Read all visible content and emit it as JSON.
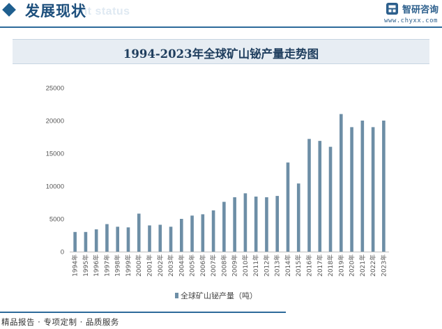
{
  "header": {
    "title": "发展现状",
    "subtitle": "ent status",
    "brand_name": "智研咨询",
    "brand_url": "www.chyxx.com",
    "accent_color": "#1f5f8f"
  },
  "chart_data": {
    "type": "bar",
    "title": "1994-2023年全球矿山铋产量走势图",
    "categories": [
      "1994年",
      "1995年",
      "1996年",
      "1997年",
      "1998年",
      "1999年",
      "2000年",
      "2001年",
      "2002年",
      "2003年",
      "2004年",
      "2005年",
      "2006年",
      "2007年",
      "2008年",
      "2009年",
      "2010年",
      "2011年",
      "2012年",
      "2013年",
      "2014年",
      "2015年",
      "2016年",
      "2017年",
      "2018年",
      "2019年",
      "2020年",
      "2021年",
      "2022年",
      "2023年"
    ],
    "series": [
      {
        "name": "全球矿山铋产量（吨）",
        "color": "#6d8ea6",
        "values": [
          3000,
          3000,
          3400,
          4200,
          3800,
          3700,
          5800,
          4000,
          4100,
          3800,
          5000,
          5500,
          5700,
          6300,
          7600,
          8300,
          8900,
          8400,
          8300,
          8500,
          13600,
          10400,
          17200,
          16900,
          16000,
          21000,
          19000,
          20000,
          19000,
          20000
        ]
      }
    ],
    "y_ticks": [
      "0",
      "5000",
      "10000",
      "15000",
      "20000",
      "25000"
    ],
    "ylim": [
      0,
      25000
    ],
    "xlabel": "",
    "ylabel": "",
    "grid": false,
    "legend_position": "bottom-center"
  },
  "footer": {
    "text": "精品报告 · 专项定制 · 品质服务"
  }
}
